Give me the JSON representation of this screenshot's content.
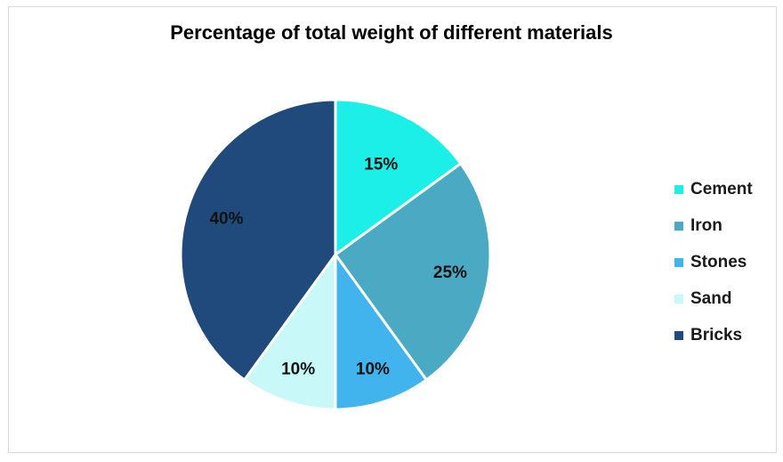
{
  "chart_data": {
    "type": "pie",
    "title": "Percentage of total weight of different materials",
    "categories": [
      "Cement",
      "Iron",
      "Stones",
      "Sand",
      "Bricks"
    ],
    "values": [
      15,
      25,
      10,
      10,
      40
    ],
    "data_labels": [
      "15%",
      "25%",
      "10%",
      "10%",
      "40%"
    ],
    "colors": [
      "#1ceee8",
      "#4aaac4",
      "#41b4ee",
      "#c8f8f8",
      "#214a7c"
    ],
    "start_angle_deg": 0,
    "direction": "clockwise",
    "legend_position": "right"
  }
}
